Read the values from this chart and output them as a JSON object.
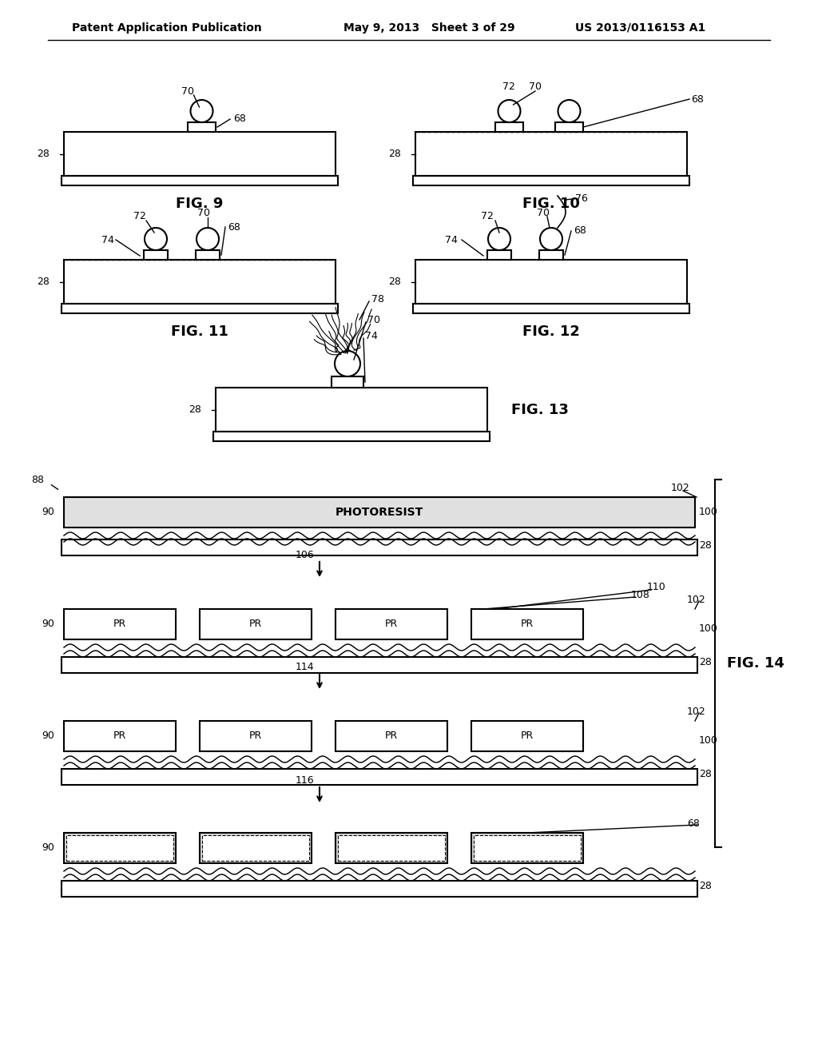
{
  "header_left": "Patent Application Publication",
  "header_mid": "May 9, 2013   Sheet 3 of 29",
  "header_right": "US 2013/0116153 A1",
  "background": "#ffffff",
  "line_color": "#000000",
  "fig9_label": "FIG. 9",
  "fig10_label": "FIG. 10",
  "fig11_label": "FIG. 11",
  "fig12_label": "FIG. 12",
  "fig13_label": "FIG. 13",
  "fig14_label": "FIG. 14"
}
